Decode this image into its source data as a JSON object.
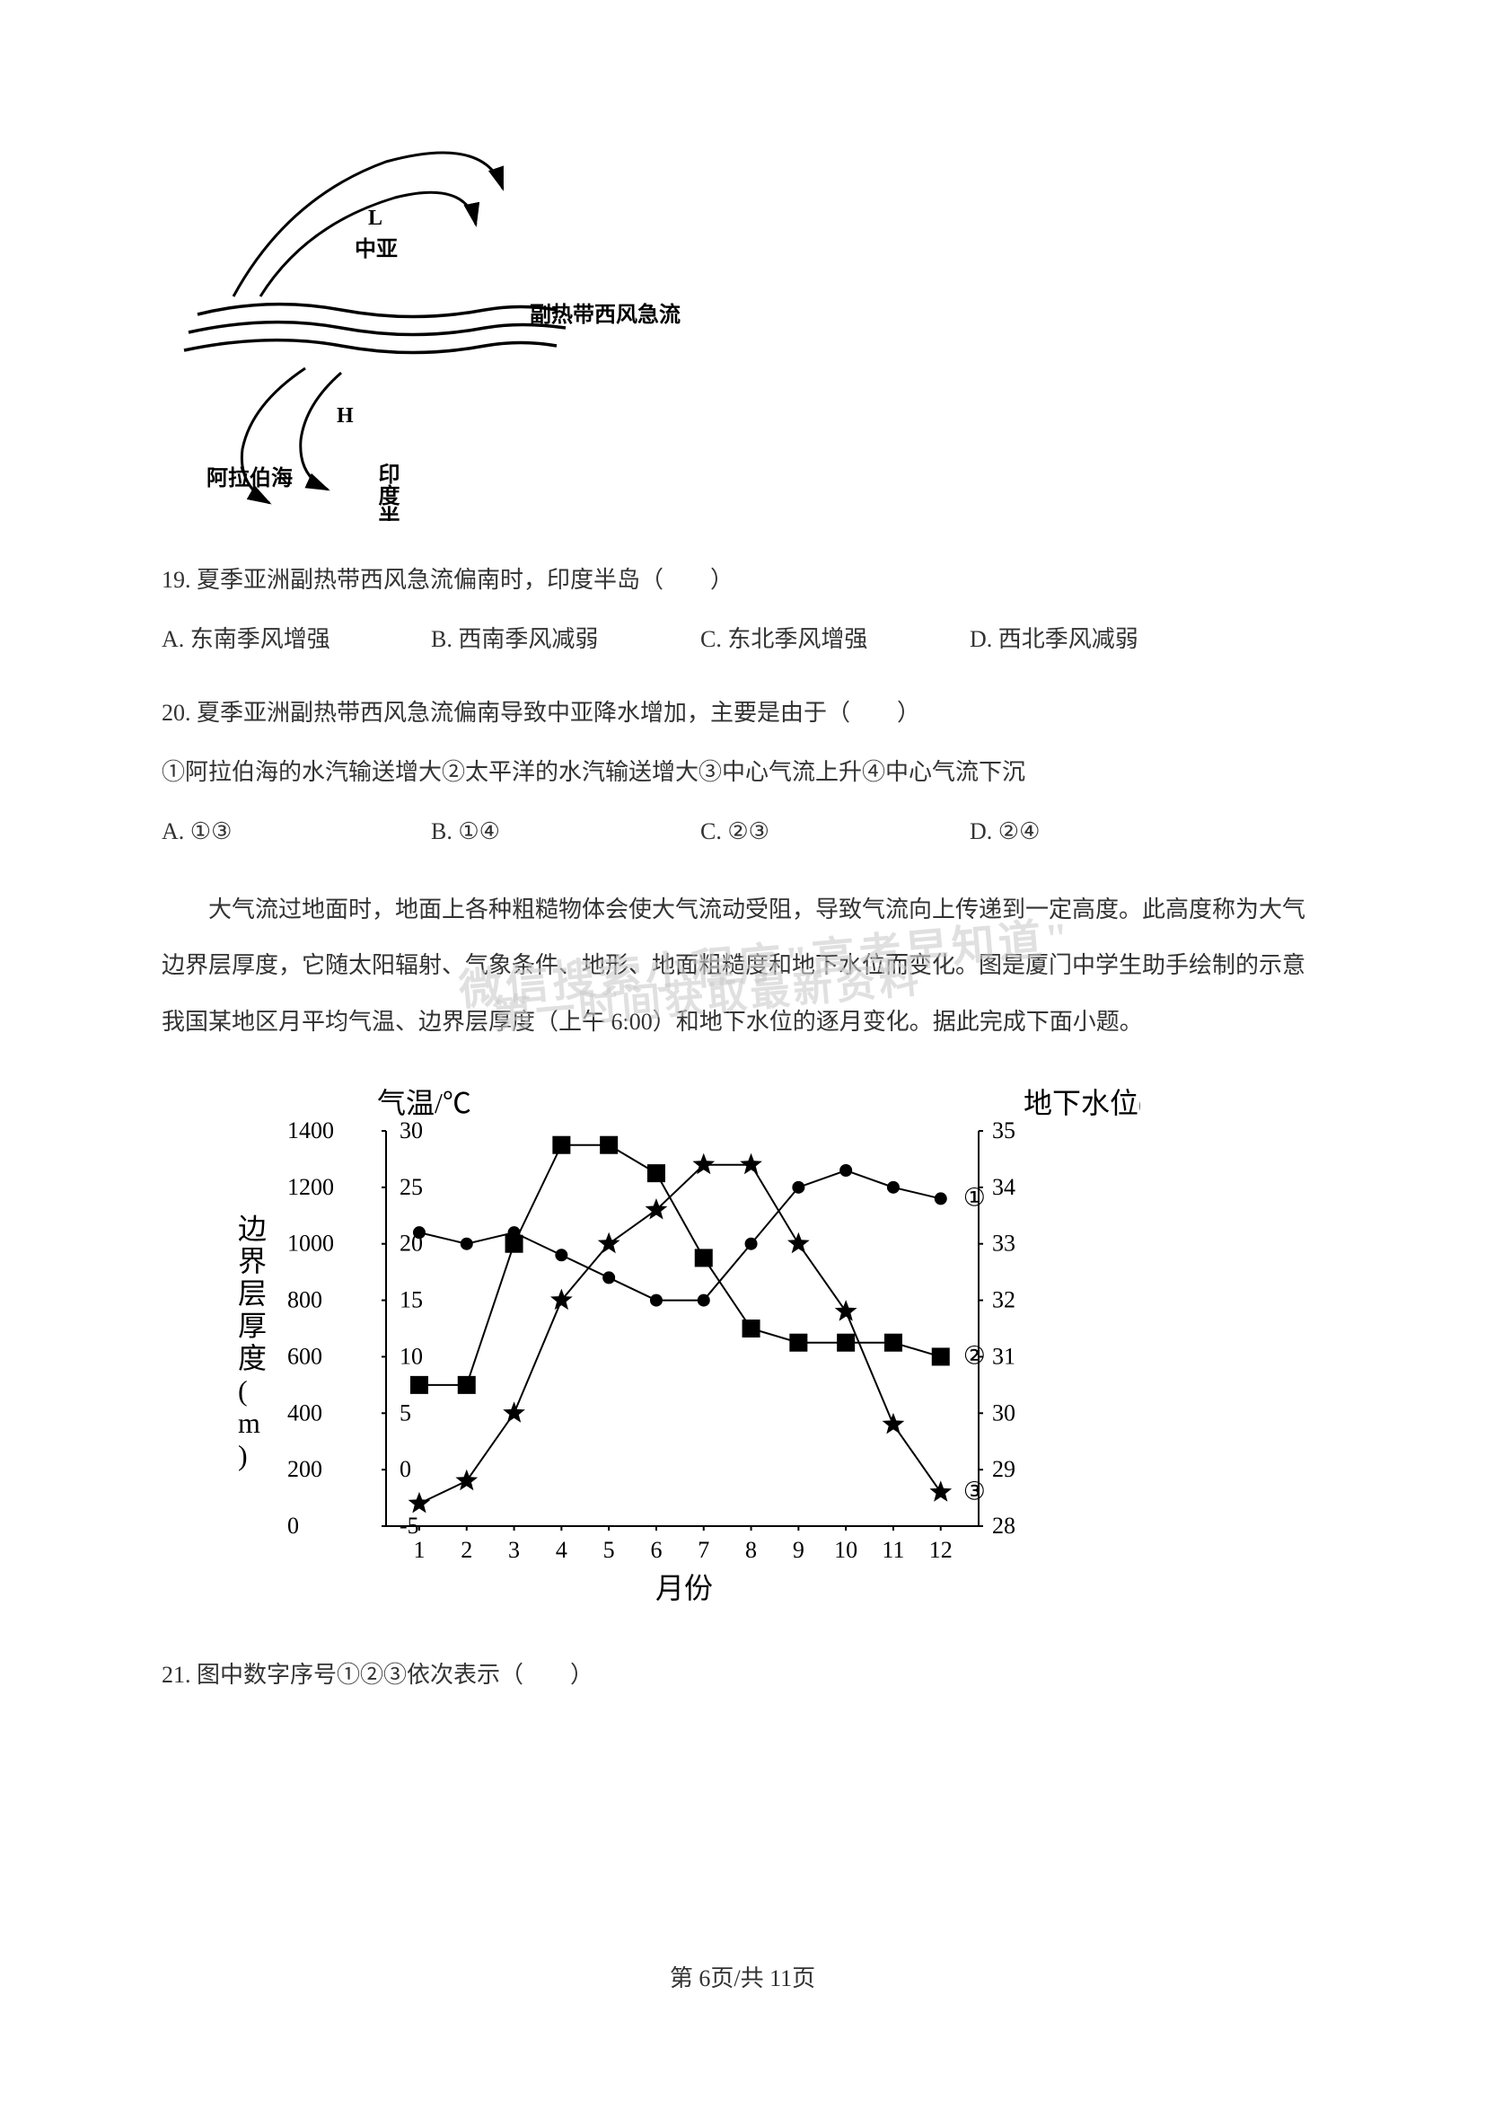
{
  "diagram1": {
    "labels": {
      "L": "L",
      "central_asia": "中亚",
      "jet_stream": "副热带西风急流",
      "H": "H",
      "arabian_sea": "阿拉伯海",
      "indian_peninsula": "印度半岛"
    },
    "stroke_color": "#000000",
    "stroke_width": 3
  },
  "q19": {
    "number": "19.",
    "text": "夏季亚洲副热带西风急流偏南时，印度半岛（　　）",
    "options": {
      "A": "A. 东南季风增强",
      "B": "B. 西南季风减弱",
      "C": "C. 东北季风增强",
      "D": "D. 西北季风减弱"
    }
  },
  "q20": {
    "number": "20.",
    "text": "夏季亚洲副热带西风急流偏南导致中亚降水增加，主要是由于（　　）",
    "statements": "①阿拉伯海的水汽输送增大②太平洋的水汽输送增大③中心气流上升④中心气流下沉",
    "options": {
      "A": "A. ①③",
      "B": "B. ①④",
      "C": "C. ②③",
      "D": "D. ②④"
    }
  },
  "passage": {
    "text": "大气流过地面时，地面上各种粗糙物体会使大气流动受阻，导致气流向上传递到一定高度。此高度称为大气边界层厚度，它随太阳辐射、气象条件、地形、地面粗糙度和地下水位而变化。图是厦门中学生助手绘制的示意我国某地区月平均气温、边界层厚度（上午 6:00）和地下水位的逐月变化。据此完成下面小题。"
  },
  "watermark": {
    "line1": "微信搜索小程序\"高考早知道\"",
    "line2": "第一时间获取最新资料"
  },
  "chart": {
    "type": "line",
    "x_label": "月份",
    "x_values": [
      1,
      2,
      3,
      4,
      5,
      6,
      7,
      8,
      9,
      10,
      11,
      12
    ],
    "y1_axis": {
      "label": "边界层厚度(m)",
      "min": 0,
      "max": 1400,
      "ticks": [
        0,
        200,
        400,
        600,
        800,
        1000,
        1200,
        1400
      ]
    },
    "y2_axis": {
      "label": "气温/℃",
      "min": -5,
      "max": 30,
      "ticks": [
        -5,
        0,
        5,
        10,
        15,
        20,
        25,
        30
      ]
    },
    "y3_axis": {
      "label": "地下水位(m)",
      "min": 28,
      "max": 35,
      "ticks": [
        28,
        29,
        30,
        31,
        32,
        33,
        34,
        35
      ]
    },
    "series_circle": {
      "marker": "circle",
      "label": "①",
      "y_axis": "y3",
      "values": [
        33.2,
        33.0,
        33.2,
        32.8,
        32.4,
        32.0,
        32.0,
        33.0,
        34.0,
        34.3,
        34.0,
        33.8
      ]
    },
    "series_square": {
      "marker": "square",
      "label": "②",
      "y_axis": "y1",
      "values": [
        500,
        500,
        1000,
        1350,
        1350,
        1250,
        950,
        700,
        650,
        650,
        650,
        600
      ]
    },
    "series_star": {
      "marker": "star",
      "label": "③",
      "y_axis": "y2",
      "values": [
        -3,
        -1,
        5,
        15,
        20,
        23,
        27,
        27,
        20,
        14,
        4,
        -2
      ]
    },
    "colors": {
      "axis": "#000000",
      "series": "#000000",
      "background": "#ffffff"
    },
    "line_width": 2,
    "marker_size": 10
  },
  "q21": {
    "number": "21.",
    "text": "图中数字序号①②③依次表示（　　）"
  },
  "footer": {
    "text": "第 6页/共 11页"
  }
}
